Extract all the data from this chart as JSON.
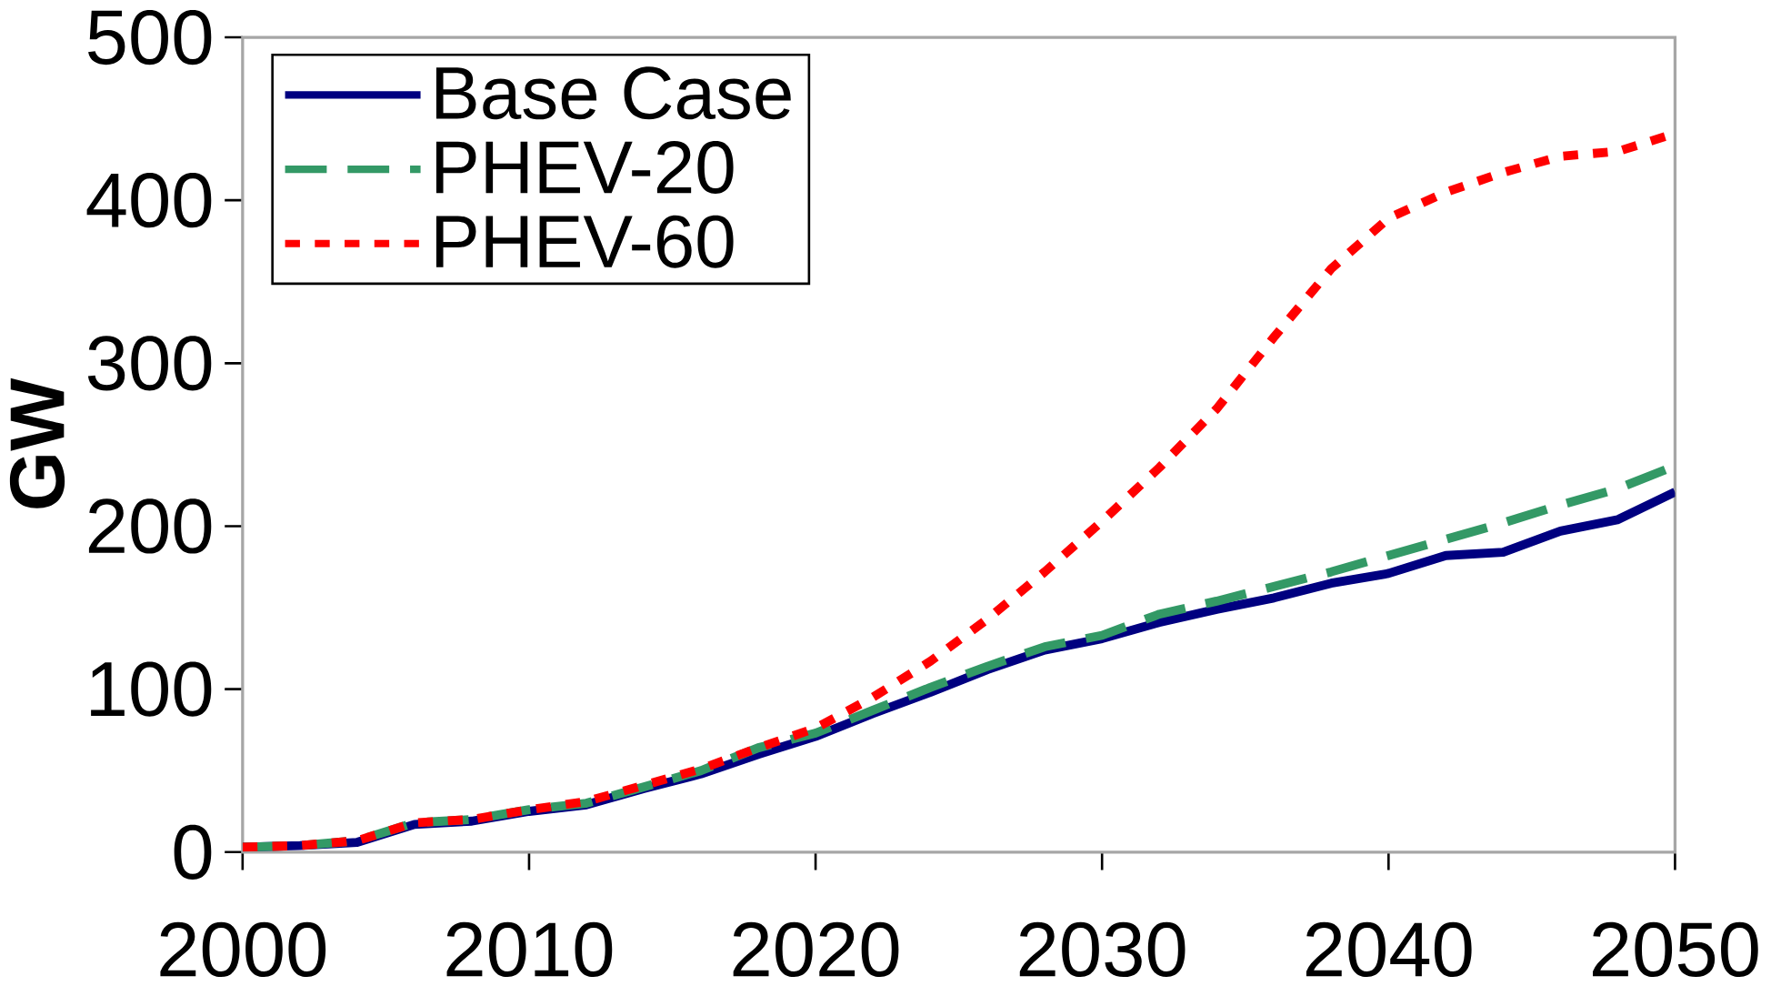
{
  "chart_data": {
    "type": "line",
    "ylabel": "GW",
    "x": [
      2000,
      2002,
      2004,
      2006,
      2008,
      2010,
      2012,
      2014,
      2016,
      2018,
      2020,
      2022,
      2024,
      2026,
      2028,
      2030,
      2032,
      2034,
      2036,
      2038,
      2040,
      2042,
      2044,
      2046,
      2048,
      2050
    ],
    "series": [
      {
        "name": "Base Case",
        "color": "#000080",
        "line_style": "solid",
        "values": [
          3,
          4,
          6,
          17,
          19,
          25,
          29,
          39,
          48,
          60,
          71,
          85,
          98,
          112,
          124,
          131,
          141,
          149,
          156,
          165,
          171,
          182,
          184,
          197,
          204,
          221
        ]
      },
      {
        "name": "PHEV-20",
        "color": "#339966",
        "line_style": "dashed",
        "values": [
          3,
          4,
          7,
          18,
          20,
          26,
          30,
          40,
          50,
          64,
          73,
          87,
          101,
          114,
          126,
          133,
          146,
          154,
          163,
          172,
          182,
          192,
          202,
          213,
          223,
          237
        ]
      },
      {
        "name": "PHEV-60",
        "color": "#ff0000",
        "line_style": "dotted",
        "values": [
          3,
          4,
          7,
          18,
          20,
          26,
          31,
          41,
          51,
          64,
          76,
          95,
          117,
          143,
          172,
          203,
          236,
          272,
          316,
          358,
          389,
          405,
          417,
          427,
          430,
          441
        ]
      }
    ],
    "xlim": [
      2000,
      2050
    ],
    "ylim": [
      0,
      500
    ],
    "xticks": [
      2000,
      2010,
      2020,
      2030,
      2040,
      2050
    ],
    "yticks": [
      0,
      100,
      200,
      300,
      400,
      500
    ],
    "grid": false,
    "legend": "top left",
    "marker": "none"
  }
}
